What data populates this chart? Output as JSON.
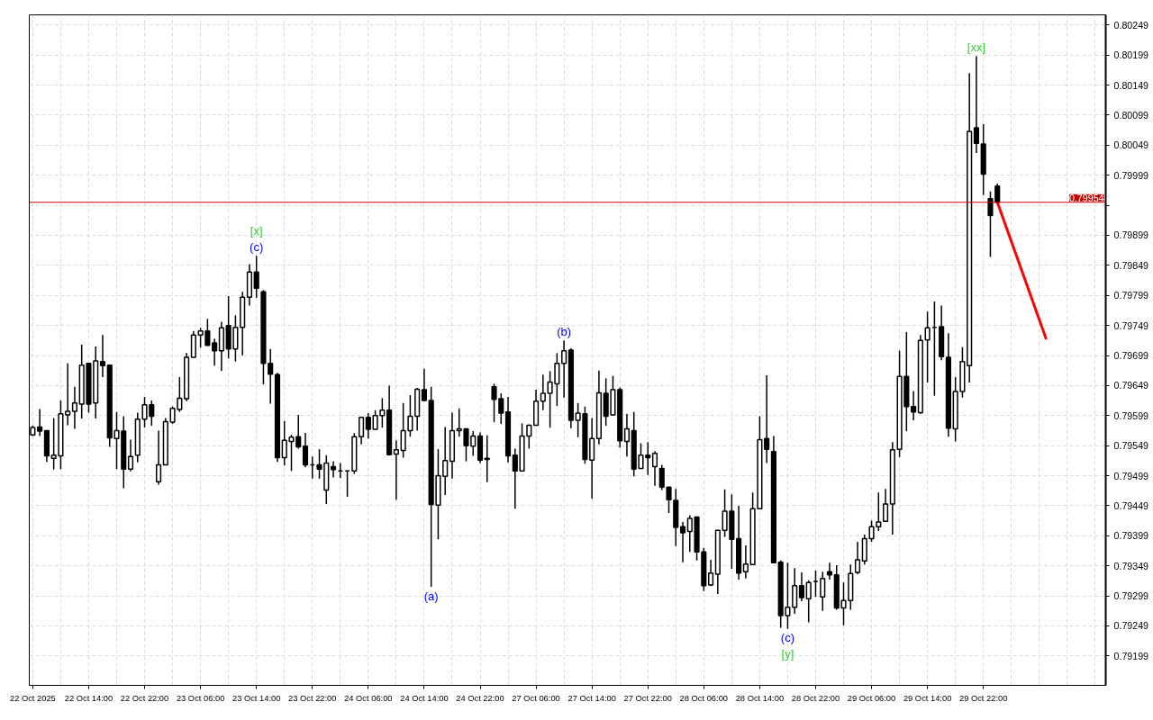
{
  "chart_data": {
    "type": "candlestick",
    "categories": [
      "22 Oct 2025",
      null,
      null,
      null,
      null,
      null,
      null,
      null,
      "22 Oct 14:00",
      null,
      null,
      null,
      null,
      null,
      null,
      null,
      "22 Oct 22:00",
      null,
      null,
      null,
      null,
      null,
      null,
      null,
      "23 Oct 06:00",
      null,
      null,
      null,
      null,
      null,
      null,
      null,
      "23 Oct 14:00",
      null,
      null,
      null,
      null,
      null,
      null,
      null,
      "23 Oct 22:00",
      null,
      null,
      null,
      null,
      null,
      null,
      null,
      "24 Oct 06:00",
      null,
      null,
      null,
      null,
      null,
      null,
      null,
      "24 Oct 14:00",
      null,
      null,
      null,
      null,
      null,
      null,
      null,
      "24 Oct 22:00",
      null,
      null,
      null,
      null,
      null,
      null,
      null,
      "27 Oct 06:00",
      null,
      null,
      null,
      null,
      null,
      null,
      null,
      "27 Oct 14:00",
      null,
      null,
      null,
      null,
      null,
      null,
      null,
      "27 Oct 22:00",
      null,
      null,
      null,
      null,
      null,
      null,
      null,
      "28 Oct 06:00",
      null,
      null,
      null,
      null,
      null,
      null,
      null,
      "28 Oct 14:00",
      null,
      null,
      null,
      null,
      null,
      null,
      null,
      "28 Oct 22:00",
      null,
      null,
      null,
      null,
      null,
      null,
      null,
      "29 Oct 06:00",
      null,
      null,
      null,
      null,
      null,
      null,
      null,
      "29 Oct 14:00",
      null,
      null,
      null,
      null,
      null,
      null,
      null,
      "29 Oct 22:00",
      null,
      null,
      null,
      null,
      null,
      null,
      null,
      null,
      null,
      null,
      null,
      null,
      null,
      null,
      null,
      null,
      null
    ],
    "ohlc": [
      [
        0.79567,
        0.79582,
        0.79565,
        0.79579
      ],
      [
        0.7958,
        0.7961,
        0.79565,
        0.79573
      ],
      [
        0.79574,
        0.79574,
        0.79522,
        0.79532
      ],
      [
        0.79528,
        0.79595,
        0.79509,
        0.79533
      ],
      [
        0.79532,
        0.79624,
        0.7951,
        0.79602
      ],
      [
        0.796,
        0.79686,
        0.79583,
        0.79606
      ],
      [
        0.79606,
        0.79647,
        0.79577,
        0.7962
      ],
      [
        0.79618,
        0.79717,
        0.79594,
        0.79683
      ],
      [
        0.79686,
        0.79687,
        0.79604,
        0.79618
      ],
      [
        0.7962,
        0.79714,
        0.79594,
        0.7969
      ],
      [
        0.79689,
        0.79733,
        0.79663,
        0.79682
      ],
      [
        0.79683,
        0.79684,
        0.79547,
        0.79562
      ],
      [
        0.79561,
        0.79605,
        0.7951,
        0.79574
      ],
      [
        0.79573,
        0.79598,
        0.79478,
        0.7951
      ],
      [
        0.7951,
        0.79559,
        0.79506,
        0.79531
      ],
      [
        0.79533,
        0.79604,
        0.79521,
        0.79593
      ],
      [
        0.79593,
        0.7963,
        0.79579,
        0.79617
      ],
      [
        0.79617,
        0.79624,
        0.79582,
        0.79598
      ],
      [
        0.79489,
        0.79574,
        0.79484,
        0.79517
      ],
      [
        0.79517,
        0.79595,
        0.79517,
        0.79589
      ],
      [
        0.79588,
        0.79614,
        0.79585,
        0.79611
      ],
      [
        0.79609,
        0.79663,
        0.79605,
        0.79628
      ],
      [
        0.79627,
        0.79703,
        0.79623,
        0.79696
      ],
      [
        0.79696,
        0.7974,
        0.79696,
        0.79733
      ],
      [
        0.79733,
        0.79745,
        0.79712,
        0.7974
      ],
      [
        0.7974,
        0.7976,
        0.79716,
        0.79716
      ],
      [
        0.7972,
        0.79727,
        0.79682,
        0.79707
      ],
      [
        0.79707,
        0.79755,
        0.79673,
        0.79745
      ],
      [
        0.79749,
        0.79798,
        0.79694,
        0.7971
      ],
      [
        0.7971,
        0.79766,
        0.79689,
        0.79746
      ],
      [
        0.79746,
        0.79805,
        0.79699,
        0.79796
      ],
      [
        0.79796,
        0.79851,
        0.79782,
        0.79838
      ],
      [
        0.79838,
        0.79865,
        0.79795,
        0.79811
      ],
      [
        0.79805,
        0.79808,
        0.79651,
        0.79686
      ],
      [
        0.79686,
        0.7971,
        0.79619,
        0.79668
      ],
      [
        0.79667,
        0.7967,
        0.79522,
        0.79529
      ],
      [
        0.79529,
        0.7959,
        0.79516,
        0.79558
      ],
      [
        0.79556,
        0.79567,
        0.79507,
        0.79563
      ],
      [
        0.79564,
        0.796,
        0.79544,
        0.79547
      ],
      [
        0.79548,
        0.7957,
        0.79513,
        0.79517
      ],
      [
        0.79517,
        0.79531,
        0.79494,
        0.79517
      ],
      [
        0.79517,
        0.79543,
        0.79494,
        0.7951
      ],
      [
        0.79475,
        0.79533,
        0.79452,
        0.7952
      ],
      [
        0.79514,
        0.79523,
        0.79496,
        0.79509
      ],
      [
        0.79507,
        0.7952,
        0.79495,
        0.79507
      ],
      [
        0.79507,
        0.79508,
        0.79464,
        0.79507
      ],
      [
        0.79507,
        0.7957,
        0.79502,
        0.79564
      ],
      [
        0.79564,
        0.79596,
        0.79551,
        0.79596
      ],
      [
        0.79596,
        0.79603,
        0.79561,
        0.79576
      ],
      [
        0.79576,
        0.79608,
        0.79576,
        0.79599
      ],
      [
        0.79599,
        0.79628,
        0.79579,
        0.79608
      ],
      [
        0.79608,
        0.79649,
        0.79534,
        0.79534
      ],
      [
        0.79535,
        0.79558,
        0.79459,
        0.79542
      ],
      [
        0.79541,
        0.7962,
        0.79529,
        0.79574
      ],
      [
        0.79574,
        0.79633,
        0.79564,
        0.79598
      ],
      [
        0.79598,
        0.79645,
        0.79574,
        0.79643
      ],
      [
        0.79642,
        0.79677,
        0.79623,
        0.79624
      ],
      [
        0.79624,
        0.79647,
        0.79314,
        0.79451
      ],
      [
        0.7945,
        0.79543,
        0.79393,
        0.79499
      ],
      [
        0.79498,
        0.7958,
        0.79467,
        0.79524
      ],
      [
        0.79523,
        0.79604,
        0.79494,
        0.79574
      ],
      [
        0.79574,
        0.79611,
        0.79564,
        0.79577
      ],
      [
        0.79577,
        0.79577,
        0.79523,
        0.79549
      ],
      [
        0.79548,
        0.79573,
        0.79532,
        0.79565
      ],
      [
        0.79565,
        0.79571,
        0.7952,
        0.79525
      ],
      [
        0.79528,
        0.79566,
        0.79488,
        0.79526
      ],
      [
        0.79647,
        0.79652,
        0.79588,
        0.79626
      ],
      [
        0.79627,
        0.79636,
        0.79585,
        0.79603
      ],
      [
        0.79605,
        0.7963,
        0.79521,
        0.79532
      ],
      [
        0.79533,
        0.79544,
        0.79444,
        0.79507
      ],
      [
        0.79507,
        0.79586,
        0.79507,
        0.79565
      ],
      [
        0.79565,
        0.79584,
        0.79544,
        0.79583
      ],
      [
        0.79583,
        0.79642,
        0.79583,
        0.79623
      ],
      [
        0.79623,
        0.79667,
        0.79608,
        0.79636
      ],
      [
        0.79636,
        0.79673,
        0.79579,
        0.79655
      ],
      [
        0.79652,
        0.79703,
        0.79615,
        0.79686
      ],
      [
        0.79686,
        0.79724,
        0.79629,
        0.79707
      ],
      [
        0.79708,
        0.79711,
        0.79578,
        0.79591
      ],
      [
        0.79591,
        0.7962,
        0.79563,
        0.79603
      ],
      [
        0.79602,
        0.79614,
        0.79519,
        0.79526
      ],
      [
        0.79525,
        0.79595,
        0.79461,
        0.79561
      ],
      [
        0.79561,
        0.79674,
        0.79551,
        0.79637
      ],
      [
        0.79636,
        0.79661,
        0.79582,
        0.79598
      ],
      [
        0.796,
        0.79665,
        0.79599,
        0.79642
      ],
      [
        0.79642,
        0.79646,
        0.79546,
        0.79557
      ],
      [
        0.79556,
        0.79602,
        0.79531,
        0.79577
      ],
      [
        0.79574,
        0.79605,
        0.79498,
        0.7951
      ],
      [
        0.79511,
        0.79553,
        0.79511,
        0.79533
      ],
      [
        0.79533,
        0.79555,
        0.795,
        0.79529
      ],
      [
        0.79514,
        0.7954,
        0.79482,
        0.79536
      ],
      [
        0.79511,
        0.79517,
        0.79475,
        0.7948
      ],
      [
        0.7948,
        0.7948,
        0.79437,
        0.79459
      ],
      [
        0.79458,
        0.79477,
        0.79382,
        0.79413
      ],
      [
        0.79414,
        0.79422,
        0.79355,
        0.79404
      ],
      [
        0.79406,
        0.79433,
        0.79372,
        0.79428
      ],
      [
        0.7943,
        0.7943,
        0.79358,
        0.79372
      ],
      [
        0.79372,
        0.79379,
        0.79307,
        0.79316
      ],
      [
        0.79317,
        0.79359,
        0.79315,
        0.79337
      ],
      [
        0.79335,
        0.79408,
        0.79302,
        0.79408
      ],
      [
        0.79408,
        0.79476,
        0.79397,
        0.7944
      ],
      [
        0.7944,
        0.79468,
        0.79344,
        0.79393
      ],
      [
        0.79394,
        0.79449,
        0.79326,
        0.79337
      ],
      [
        0.79339,
        0.79383,
        0.79328,
        0.79352
      ],
      [
        0.79351,
        0.79471,
        0.7935,
        0.79444
      ],
      [
        0.79444,
        0.79598,
        0.79444,
        0.79559
      ],
      [
        0.79561,
        0.79666,
        0.7952,
        0.79543
      ],
      [
        0.79539,
        0.79565,
        0.79354,
        0.79354
      ],
      [
        0.79355,
        0.79358,
        0.79246,
        0.79266
      ],
      [
        0.79266,
        0.79354,
        0.79244,
        0.7928
      ],
      [
        0.7928,
        0.79345,
        0.79269,
        0.79316
      ],
      [
        0.79316,
        0.79338,
        0.7929,
        0.79296
      ],
      [
        0.79294,
        0.79325,
        0.79255,
        0.79321
      ],
      [
        0.79323,
        0.79341,
        0.79297,
        0.79323
      ],
      [
        0.79297,
        0.79339,
        0.79274,
        0.79328
      ],
      [
        0.79339,
        0.79354,
        0.79326,
        0.79334
      ],
      [
        0.79334,
        0.7935,
        0.79276,
        0.79279
      ],
      [
        0.79279,
        0.79321,
        0.7925,
        0.79291
      ],
      [
        0.79291,
        0.79351,
        0.79276,
        0.79336
      ],
      [
        0.79338,
        0.79389,
        0.79335,
        0.79359
      ],
      [
        0.79357,
        0.79401,
        0.79351,
        0.79394
      ],
      [
        0.79394,
        0.79424,
        0.79389,
        0.79414
      ],
      [
        0.79414,
        0.79471,
        0.79407,
        0.79422
      ],
      [
        0.79423,
        0.79477,
        0.79423,
        0.79452
      ],
      [
        0.79452,
        0.79555,
        0.79401,
        0.79542
      ],
      [
        0.79543,
        0.79707,
        0.7953,
        0.79664
      ],
      [
        0.79664,
        0.79738,
        0.79573,
        0.79614
      ],
      [
        0.79614,
        0.7964,
        0.79591,
        0.79605
      ],
      [
        0.79604,
        0.79733,
        0.79602,
        0.79724
      ],
      [
        0.79725,
        0.79772,
        0.79654,
        0.79745
      ],
      [
        0.79746,
        0.79789,
        0.79632,
        0.79746
      ],
      [
        0.79747,
        0.79782,
        0.79691,
        0.79697
      ],
      [
        0.79696,
        0.79736,
        0.79564,
        0.79578
      ],
      [
        0.79577,
        0.79663,
        0.79556,
        0.79639
      ],
      [
        0.79639,
        0.79713,
        0.79629,
        0.79689
      ],
      [
        0.79682,
        0.80169,
        0.79654,
        0.80072
      ],
      [
        0.80078,
        0.80197,
        0.80036,
        0.80052
      ],
      [
        0.80051,
        0.80084,
        0.79966,
        0.80001
      ],
      [
        0.7996,
        0.79972,
        0.79863,
        0.79932
      ],
      [
        0.79981,
        0.79985,
        0.79954,
        0.79954
      ],
      null,
      null,
      null,
      null,
      null,
      null,
      null,
      null,
      null,
      null,
      null,
      null,
      null,
      null,
      null
    ],
    "series": [
      {
        "type": "line",
        "color": "#ff0000",
        "values": [
          null,
          null,
          null,
          null,
          null,
          null,
          null,
          null,
          null,
          null,
          null,
          null,
          null,
          null,
          null,
          null,
          null,
          null,
          null,
          null,
          null,
          null,
          null,
          null,
          null,
          null,
          null,
          null,
          null,
          null,
          null,
          null,
          null,
          null,
          null,
          null,
          null,
          null,
          null,
          null,
          null,
          null,
          null,
          null,
          null,
          null,
          null,
          null,
          null,
          null,
          null,
          null,
          null,
          null,
          null,
          null,
          null,
          null,
          null,
          null,
          null,
          null,
          null,
          null,
          null,
          null,
          null,
          null,
          null,
          null,
          null,
          null,
          null,
          null,
          null,
          null,
          null,
          null,
          null,
          null,
          null,
          null,
          null,
          null,
          null,
          null,
          null,
          null,
          null,
          null,
          null,
          null,
          null,
          null,
          null,
          null,
          null,
          null,
          null,
          null,
          null,
          null,
          null,
          null,
          null,
          null,
          null,
          null,
          null,
          null,
          null,
          null,
          null,
          null,
          null,
          null,
          null,
          null,
          null,
          null,
          null,
          null,
          null,
          null,
          null,
          null,
          null,
          null,
          null,
          null,
          null,
          null,
          null,
          null,
          null,
          null,
          null,
          null,
          0.79954,
          null,
          null,
          null,
          null,
          null,
          null,
          0.79726,
          null,
          null,
          null,
          null,
          null,
          null,
          null,
          null
        ]
      }
    ],
    "ylim": [
      0.7915,
      0.80266
    ],
    "yticks": [
      0.80249,
      0.80199,
      0.80149,
      0.80099,
      0.80049,
      0.79999,
      {
        "value": 0.79949,
        "label": null
      },
      0.79899,
      0.79849,
      0.79799,
      0.79749,
      0.79699,
      0.79649,
      0.79599,
      0.79549,
      0.79499,
      0.79449,
      0.79399,
      0.79349,
      0.79299,
      0.79249,
      0.79199
    ],
    "grid": true,
    "ref_lines": [
      {
        "axis": "y",
        "value": 0.79954,
        "label": "0.79954",
        "color": "#cc0000"
      }
    ],
    "annotations": [
      "[x]",
      "(c)",
      "(a)",
      "(b)",
      "(c)",
      "[y]",
      "[xx]"
    ]
  }
}
